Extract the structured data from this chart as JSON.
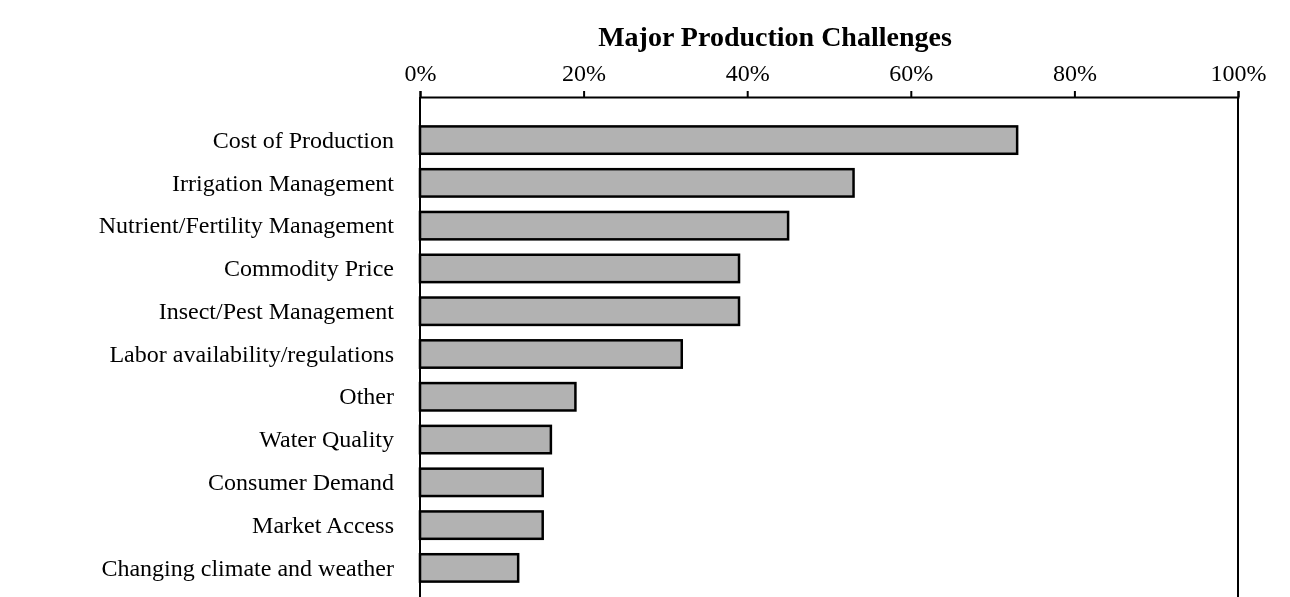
{
  "chart_data": {
    "type": "bar",
    "orientation": "horizontal",
    "title": "Major Production Challenges",
    "categories": [
      "Cost of Production",
      "Irrigation Management",
      "Nutrient/Fertility Management",
      "Commodity Price",
      "Insect/Pest Management",
      "Labor availability/regulations",
      "Other ",
      "Water Quality",
      "Consumer Demand",
      "Market Access",
      "Changing climate and weather"
    ],
    "values": [
      73,
      53,
      45,
      39,
      39,
      32,
      19,
      16,
      15,
      15,
      12
    ],
    "color": "#b2b2b2",
    "xlim": [
      0,
      100
    ],
    "xticks": [
      {
        "value": 0,
        "label": "0%"
      },
      {
        "value": 20,
        "label": "20%"
      },
      {
        "value": 40,
        "label": "40%"
      },
      {
        "value": 60,
        "label": "60%"
      },
      {
        "value": 80,
        "label": "80%"
      },
      {
        "value": 100,
        "label": "100%"
      }
    ],
    "grid": false
  }
}
